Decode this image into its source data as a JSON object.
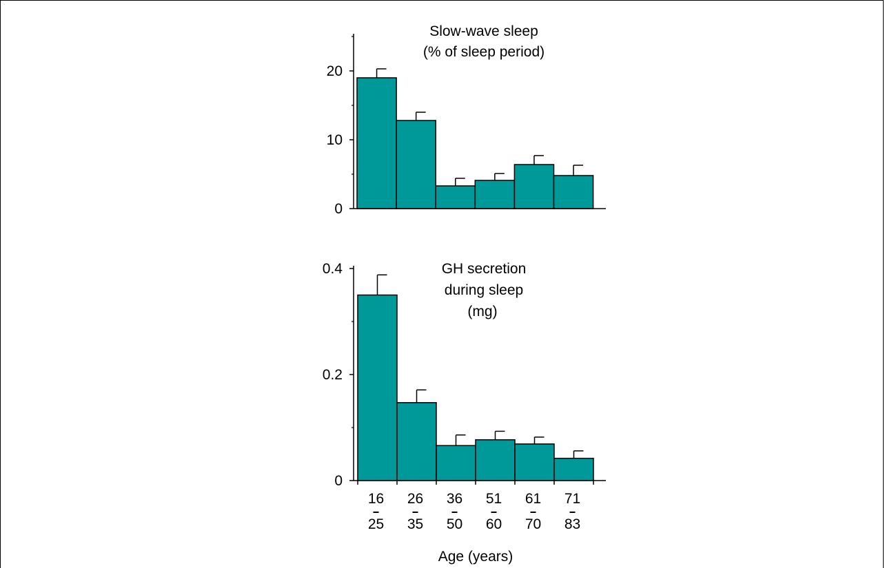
{
  "colors": {
    "bar": "#009999",
    "stroke": "#000000"
  },
  "chart_data": [
    {
      "type": "bar",
      "title_lines": [
        "Slow-wave sleep",
        "(% of sleep period)"
      ],
      "categories": [
        "16-25",
        "26-35",
        "36-50",
        "51-60",
        "61-70",
        "71-83"
      ],
      "values": [
        19,
        12.8,
        3.3,
        4.1,
        6.4,
        4.8
      ],
      "errors": [
        1.3,
        1.2,
        1.1,
        1.0,
        1.3,
        1.5
      ],
      "ylim": [
        0,
        25
      ],
      "ytick_labels": [
        "0",
        "10",
        "20"
      ],
      "ytick_values": [
        0,
        10,
        20
      ],
      "yminor_values": [
        5,
        15,
        25
      ]
    },
    {
      "type": "bar",
      "title_lines": [
        "GH secretion",
        "during sleep",
        "(mg)"
      ],
      "categories": [
        "16-25",
        "26-35",
        "36-50",
        "51-60",
        "61-70",
        "71-83"
      ],
      "values": [
        0.35,
        0.147,
        0.066,
        0.077,
        0.069,
        0.042
      ],
      "errors": [
        0.038,
        0.024,
        0.02,
        0.016,
        0.013,
        0.014
      ],
      "ylim": [
        0,
        0.4
      ],
      "ytick_labels": [
        "0",
        "0.2",
        "0.4"
      ],
      "ytick_values": [
        0,
        0.2,
        0.4
      ],
      "yminor_values": [
        0.1,
        0.3
      ],
      "category_labels": [
        {
          "top": "16",
          "bottom": "25"
        },
        {
          "top": "26",
          "bottom": "35"
        },
        {
          "top": "36",
          "bottom": "50"
        },
        {
          "top": "51",
          "bottom": "60"
        },
        {
          "top": "61",
          "bottom": "70"
        },
        {
          "top": "71",
          "bottom": "83"
        }
      ],
      "xlabel": "Age (years)"
    }
  ]
}
